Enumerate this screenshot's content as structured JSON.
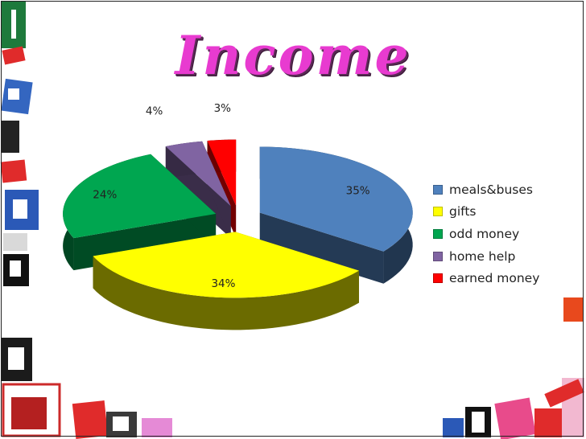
{
  "title": "Income",
  "colors": {
    "title": "#e83bd0",
    "meals": "#4f81bd",
    "gifts": "#ffff00",
    "odd": "#00a650",
    "home": "#8064a2",
    "earned": "#ff0000"
  },
  "chart_data": {
    "type": "pie",
    "title": "Income",
    "legend_position": "right",
    "exploded": true,
    "three_d": true,
    "series": [
      {
        "labels": [
          "meals&buses",
          "gifts",
          "odd money",
          "home help",
          "earned money"
        ],
        "values": [
          35,
          34,
          24,
          4,
          3
        ],
        "data_labels": [
          "35%",
          "34%",
          "24%",
          "4%",
          "3%"
        ],
        "colors": [
          "#4f81bd",
          "#ffff00",
          "#00a650",
          "#8064a2",
          "#ff0000"
        ]
      }
    ]
  },
  "legend": [
    {
      "label": "meals&buses",
      "color": "#4f81bd"
    },
    {
      "label": "gifts",
      "color": "#ffff00"
    },
    {
      "label": "odd money",
      "color": "#00a650"
    },
    {
      "label": "home help",
      "color": "#8064a2"
    },
    {
      "label": "earned money",
      "color": "#ff0000"
    }
  ]
}
